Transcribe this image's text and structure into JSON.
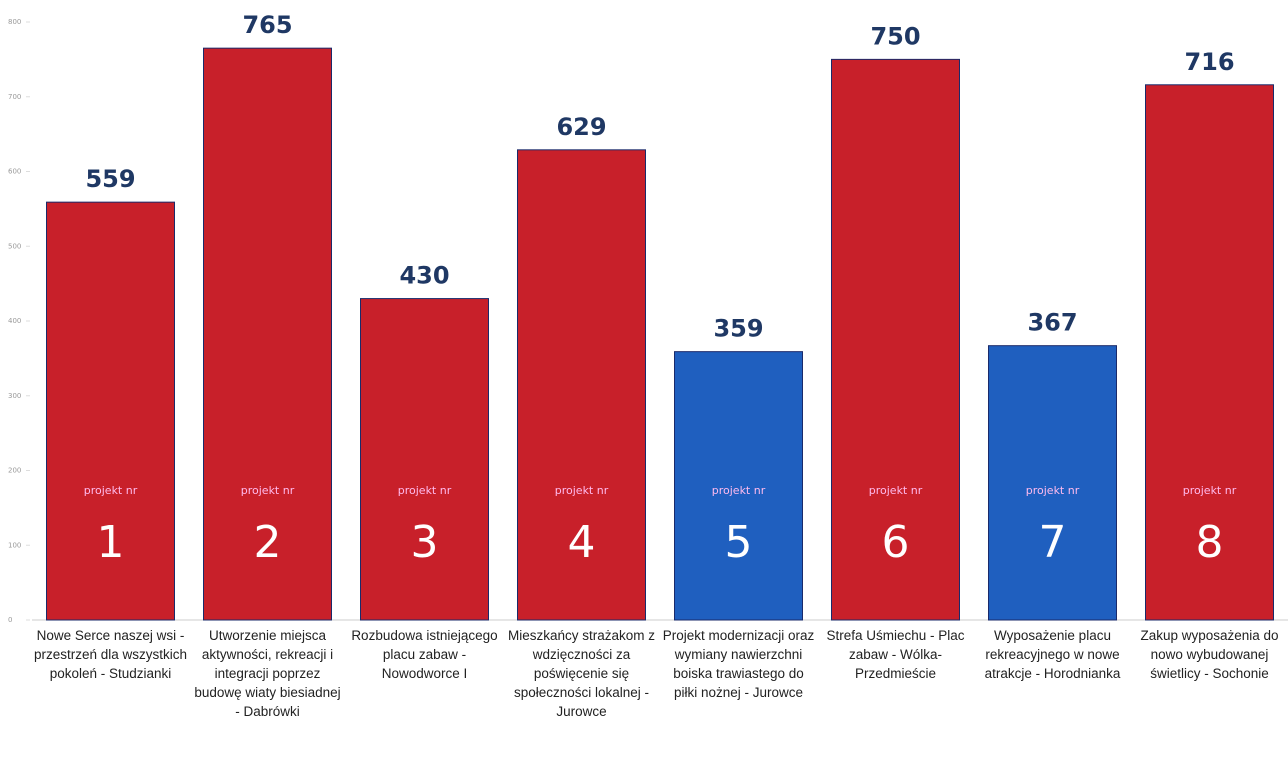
{
  "chart_data": {
    "type": "bar",
    "categories": [
      "Nowe Serce naszej wsi - przestrzeń dla wszystkich pokoleń - Studzianki",
      "Utworzenie miejsca aktywności, rekreacji i integracji poprzez budowę wiaty biesiadnej - Dabrówki",
      "Rozbudowa istniejącego placu zabaw - Nowodworce I",
      "Mieszkańcy strażakom z wdzięczności za poświęcenie się społeczności lokalnej - Jurowce",
      "Projekt modernizacji oraz wymiany nawierzchni boiska trawiastego do piłki nożnej - Jurowce",
      "Strefa Uśmiechu - Plac zabaw - Wólka-Przedmieście",
      "Wyposażenie placu rekreacyjnego w nowe atrakcje - Horodnianka",
      "Zakup wyposażenia do nowo wybudowanej świetlicy - Sochonie"
    ],
    "values": [
      559,
      765,
      430,
      629,
      359,
      750,
      367,
      716
    ],
    "colors": [
      "#c8202a",
      "#c8202a",
      "#c8202a",
      "#c8202a",
      "#1f5fbf",
      "#c8202a",
      "#1f5fbf",
      "#c8202a"
    ],
    "bar_prefix": "projekt nr",
    "bar_numbers": [
      1,
      2,
      3,
      4,
      5,
      6,
      7,
      8
    ],
    "ylim": [
      0,
      800
    ],
    "yticks": [
      0,
      100,
      200,
      300,
      400,
      500,
      600,
      700,
      800
    ]
  }
}
